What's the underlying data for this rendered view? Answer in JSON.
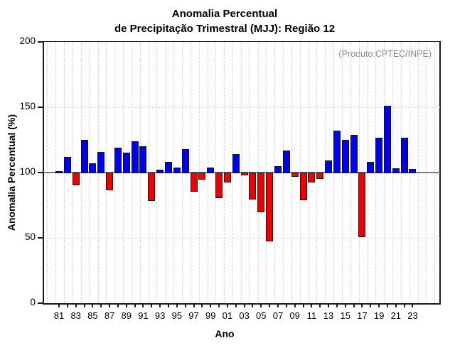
{
  "title": {
    "line1": "Anomalia Percentual",
    "line2": "de Precipitação Trimestral (MJJ): Região 12"
  },
  "annotation": "(Produto:CPTEC/INPE)",
  "chart_data": {
    "type": "bar",
    "title": "Anomalia Percentual de Precipitação Trimestral (MJJ): Região 12",
    "xlabel": "Ano",
    "ylabel": "Anomalia Percentual (%)",
    "ylim": [
      0,
      200
    ],
    "yticks": [
      0,
      50,
      100,
      150,
      200
    ],
    "baseline": 100,
    "grid": "dotted vertical line per year; dotted horizontal lines at 50 and 150; solid gray line at 100",
    "legend": "none",
    "colors": {
      "above_baseline": "#0000ee",
      "below_baseline": "#ee0000",
      "bar_border": "#111111",
      "grid": "#d4d4d4",
      "annotation_gray": "#8a8a8a"
    },
    "x": [
      1981,
      1982,
      1983,
      1984,
      1985,
      1986,
      1987,
      1988,
      1989,
      1990,
      1991,
      1992,
      1993,
      1994,
      1995,
      1996,
      1997,
      1998,
      1999,
      2000,
      2001,
      2002,
      2003,
      2004,
      2005,
      2006,
      2007,
      2008,
      2009,
      2010,
      2011,
      2012,
      2013,
      2014,
      2015,
      2016,
      2017,
      2018,
      2019,
      2020,
      2021,
      2022,
      2023
    ],
    "values": [
      101,
      112,
      91,
      125,
      107,
      116,
      87,
      119,
      115,
      124,
      120,
      79,
      102,
      108,
      104,
      118,
      86,
      95,
      104,
      81,
      93,
      114,
      98.5,
      80,
      70,
      48,
      105,
      117,
      97.5,
      79.5,
      93,
      95.5,
      109,
      132,
      125,
      129,
      51,
      108,
      126.5,
      151,
      103,
      126.5,
      102.5
    ],
    "xtick_labels": [
      "81",
      "83",
      "85",
      "87",
      "89",
      "91",
      "93",
      "95",
      "97",
      "99",
      "01",
      "03",
      "05",
      "07",
      "09",
      "11",
      "13",
      "15",
      "17",
      "19",
      "21",
      "23"
    ]
  }
}
